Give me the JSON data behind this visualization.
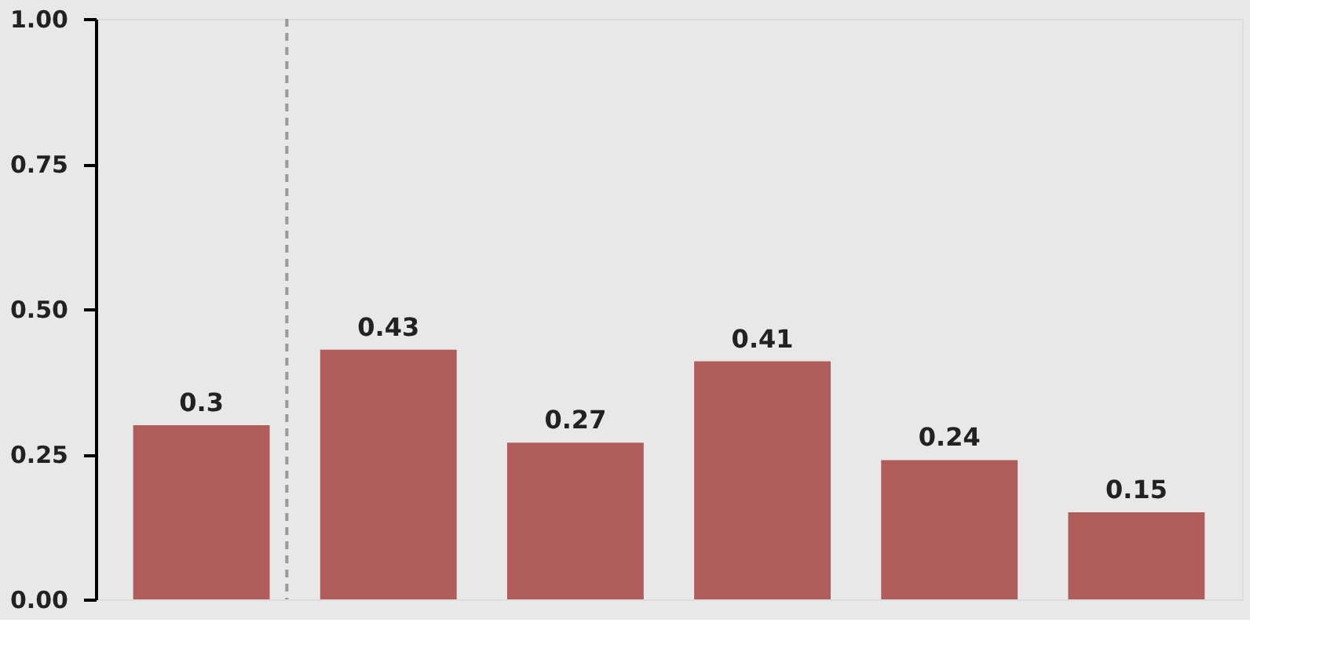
{
  "chart_data": {
    "type": "bar",
    "categories": [
      null,
      null,
      null,
      null,
      null,
      null
    ],
    "values": [
      0.3,
      0.43,
      0.27,
      0.41,
      0.24,
      0.15
    ],
    "color": "#b05c5a",
    "ylim": [
      0,
      1
    ],
    "yticks": [
      {
        "value": 0,
        "label": "0.00"
      },
      0.25,
      {
        "value": 0.5,
        "label": "0.50"
      },
      0.75,
      {
        "value": 1,
        "label": "1.00"
      }
    ],
    "data_labels": true,
    "grid": false
  }
}
